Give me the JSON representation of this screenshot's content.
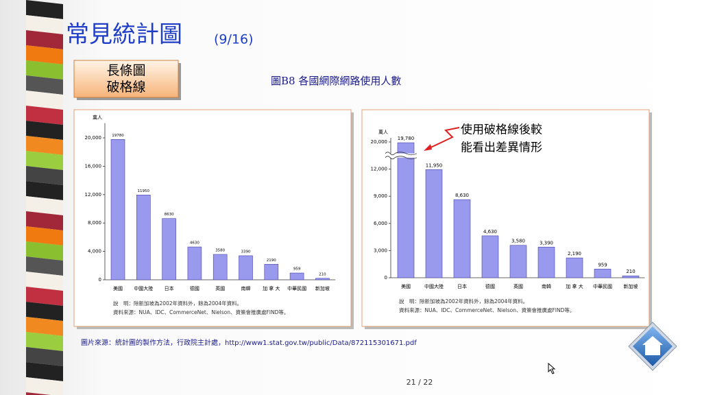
{
  "slide": {
    "title": "常見統計圖",
    "title_suffix": "(9/16)",
    "tag_lines": [
      "長條圖",
      "破格線"
    ],
    "figure_caption": "圖B8  各國網際網路使用人數",
    "annotation_lines": [
      "使用破格線後較",
      "能看出差異情形"
    ],
    "source": "圖片來源：統計圖的製作方法，行政院主計處，http://www1.stat.gov.tw/public/Data/872115301671.pdf",
    "page_number": "21 / 22"
  },
  "chart_data": [
    {
      "type": "bar",
      "unit_label": "萬人",
      "categories": [
        "美國",
        "中國大陸",
        "日本",
        "德國",
        "英國",
        "南韓",
        "加 拿 大",
        "中華民國",
        "新加坡"
      ],
      "values": [
        19780,
        11950,
        8630,
        4630,
        3580,
        3390,
        2190,
        959,
        210
      ],
      "color": "#9999ee",
      "ylim": [
        0,
        21500
      ],
      "yticks": [
        0,
        {
          "value": 4000,
          "label": "4,000"
        },
        {
          "value": 8000,
          "label": "8,000"
        },
        {
          "value": 12000,
          "label": "12,000"
        },
        {
          "value": 16000,
          "label": "16,000"
        },
        {
          "value": 20000,
          "label": "20,000"
        }
      ],
      "broken_axis": false,
      "notes": [
        "說　明：除新加坡為2002年資料外，餘為2004年資料。",
        "資料來源：NUA、IDC、CommerceNet、Nielson、資策會推廣處FIND等。"
      ]
    },
    {
      "type": "bar",
      "unit_label": "萬人",
      "categories": [
        "美國",
        "中國大陸",
        "日本",
        "德國",
        "英國",
        "南韓",
        "加 拿 大",
        "中華民國",
        "新加坡"
      ],
      "values": [
        19780,
        11950,
        8630,
        4630,
        3580,
        3390,
        2190,
        959,
        210
      ],
      "value_labels": [
        "19,780",
        "11,950",
        "8,630",
        "4,630",
        "3,580",
        "3,390",
        "2,190",
        "959",
        "210"
      ],
      "color": "#9999ee",
      "ylim": [
        0,
        20000
      ],
      "yticks": [
        0,
        {
          "value": 3000,
          "label": "3,000"
        },
        {
          "value": 6000,
          "label": "6,000"
        },
        {
          "value": 9000,
          "label": "9,000"
        },
        {
          "value": 12000,
          "label": "12,000"
        },
        {
          "value": 20000,
          "label": "20,000"
        }
      ],
      "broken_axis": true,
      "notes": [
        "說　明：除新加坡為2002年資料外，餘為2004年資料。",
        "資料來源：NUA、IDC、CommerceNet、Nielson、資策會推廣處FIND等。"
      ]
    }
  ]
}
